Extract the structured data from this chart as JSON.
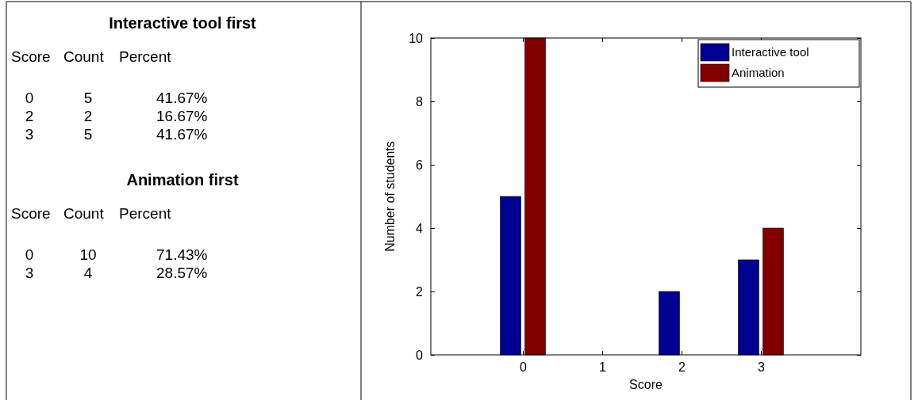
{
  "chart_data": [
    {
      "type": "other",
      "title": "Interactive tool first",
      "annotations": [
        "Score",
        "Count",
        "Percent",
        "0",
        "5",
        "41.67%",
        "2",
        "2",
        "16.67%",
        "3",
        "5",
        "41.67%"
      ]
    },
    {
      "type": "other",
      "title": "Animation first",
      "annotations": [
        "Score",
        "Count",
        "Percent",
        "0",
        "10",
        "71.43%",
        "3",
        "4",
        "28.57%"
      ]
    },
    {
      "type": "bar",
      "xlabel": "Score",
      "ylabel": "Number of students",
      "categories": [
        "0",
        "1",
        "2",
        "3"
      ],
      "series": [
        {
          "name": "Interactive tool",
          "color": "#000090",
          "values": [
            5,
            0,
            2,
            3
          ]
        },
        {
          "name": "Animation",
          "color": "#800000",
          "values": [
            10,
            0,
            0,
            4
          ]
        }
      ],
      "ylim": [
        0,
        10
      ],
      "yticks": [
        0,
        2,
        4,
        6,
        8,
        10
      ],
      "legend": "top right"
    }
  ]
}
